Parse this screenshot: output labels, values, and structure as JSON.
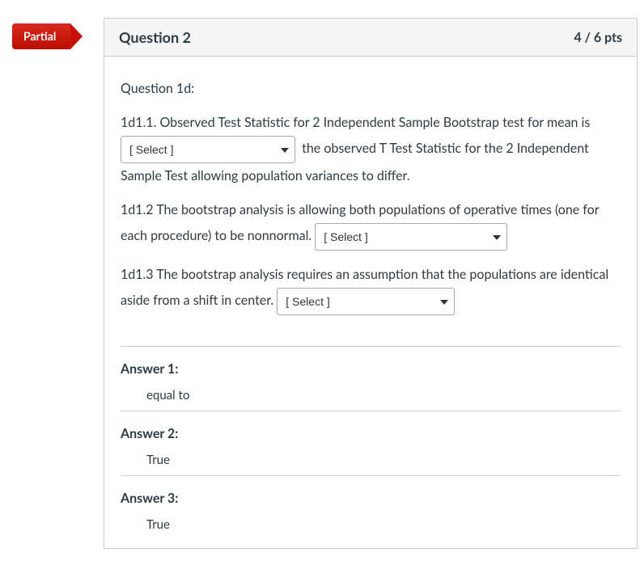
{
  "badge": {
    "label": "Partial",
    "bg_top": "#d7291d",
    "bg_bottom": "#bc0d02"
  },
  "header": {
    "title": "Question 2",
    "points": "4 / 6 pts"
  },
  "question": {
    "intro": "Question 1d:",
    "part1_pre": "1d1.1. Observed Test Statistic for 2 Independent Sample Bootstrap test for mean is ",
    "part1_post": " the observed T Test Statistic for the 2 Independent Sample Test allowing population variances to differ.",
    "part2_pre": "1d1.2 The bootstrap analysis is allowing both populations of operative times (one for each procedure) to be nonnormal. ",
    "part3_pre": "1d1.3 The bootstrap analysis requires an assumption that the populations are identical aside from a shift in center. ",
    "select_placeholder": "[ Select ]",
    "select_widths": {
      "s1": 216,
      "s2": 238,
      "s3": 220
    }
  },
  "answers": [
    {
      "label": "Answer 1:",
      "value": "equal to"
    },
    {
      "label": "Answer 2:",
      "value": "True"
    },
    {
      "label": "Answer 3:",
      "value": "True"
    }
  ]
}
